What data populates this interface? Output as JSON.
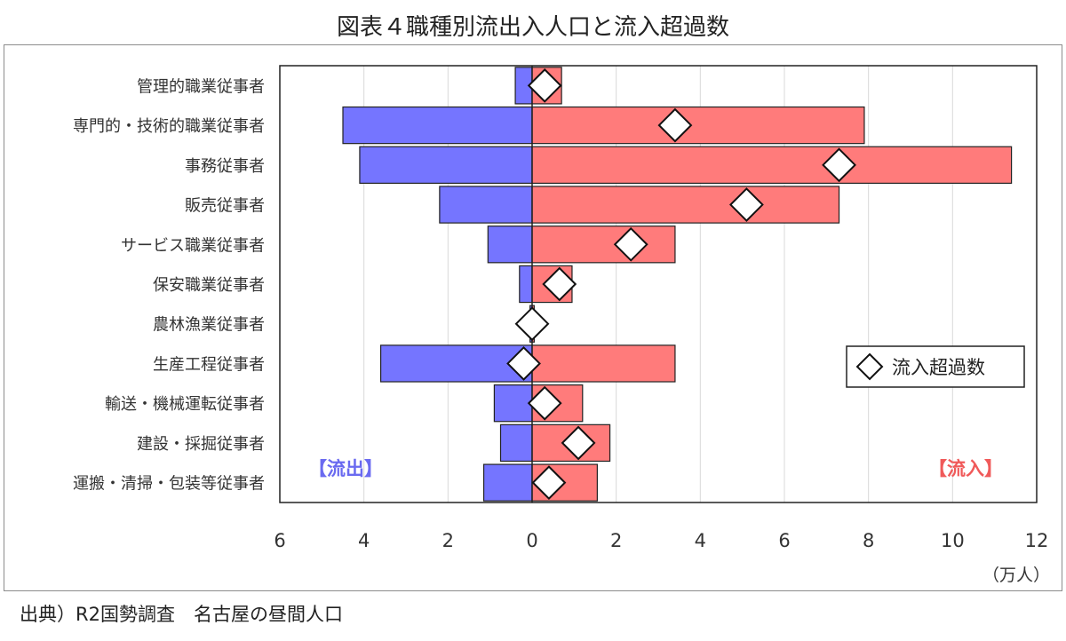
{
  "title": "図表４職種別流出入人口と流入超過数",
  "source": "出典）R2国勢調査　名古屋の昼間人口",
  "chart_data": {
    "type": "bar",
    "orientation": "horizontal",
    "categories": [
      "管理的職業従事者",
      "専門的・技術的職業従事者",
      "事務従事者",
      "販売従事者",
      "サービス職業従事者",
      "保安職業従事者",
      "農林漁業従事者",
      "生産工程従事者",
      "輸送・機械運転従事者",
      "建設・採掘従事者",
      "運搬・清掃・包装等従事者"
    ],
    "series": [
      {
        "name": "【流出】",
        "values": [
          0.4,
          4.5,
          4.1,
          2.2,
          1.05,
          0.3,
          0.05,
          3.6,
          0.9,
          0.75,
          1.15
        ],
        "color": "#7575ff"
      },
      {
        "name": "【流入】",
        "values": [
          0.7,
          7.9,
          11.4,
          7.3,
          3.4,
          0.95,
          0.05,
          3.4,
          1.2,
          1.85,
          1.55
        ],
        "color": "#ff7b7b"
      },
      {
        "name": "流入超過数",
        "values": [
          0.3,
          3.4,
          7.3,
          5.1,
          2.35,
          0.65,
          0.0,
          -0.2,
          0.3,
          1.1,
          0.4
        ],
        "marker": "diamond"
      }
    ],
    "xlim": [
      -6,
      12
    ],
    "x_ticks": [
      "6",
      "4",
      "2",
      "0",
      "2",
      "4",
      "6",
      "8",
      "10",
      "12"
    ],
    "x_tick_values": [
      -6,
      -4,
      -2,
      0,
      2,
      4,
      6,
      8,
      10,
      12
    ],
    "unit": "（万人）",
    "legend": {
      "label": "流入超過数",
      "position": "right-middle"
    },
    "annotations": {
      "outflow": "【流出】",
      "inflow": "【流入】"
    },
    "grid": true
  }
}
